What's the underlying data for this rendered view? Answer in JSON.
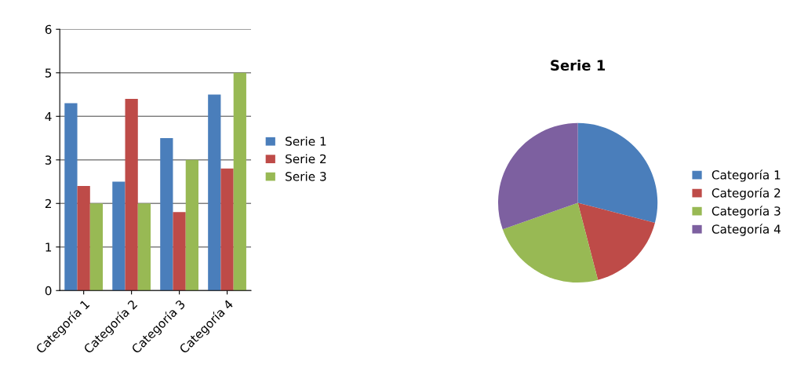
{
  "chart_data": [
    {
      "type": "bar",
      "categories": [
        "Categoría 1",
        "Categoría 2",
        "Categoría 3",
        "Categoría 4"
      ],
      "series": [
        {
          "name": "Serie 1",
          "color": "#4a7ebb",
          "values": [
            4.3,
            2.5,
            3.5,
            4.5
          ]
        },
        {
          "name": "Serie 2",
          "color": "#be4b48",
          "values": [
            2.4,
            4.4,
            1.8,
            2.8
          ]
        },
        {
          "name": "Serie 3",
          "color": "#98b954",
          "values": [
            2,
            2,
            3,
            5
          ]
        }
      ],
      "ylim": [
        0,
        6
      ],
      "yticks": [
        0,
        1,
        2,
        3,
        4,
        5,
        6
      ],
      "grid": "y",
      "legend": "right"
    },
    {
      "type": "pie",
      "title": "Serie 1",
      "categories": [
        "Categoría 1",
        "Categoría 2",
        "Categoría 3",
        "Categoría 4"
      ],
      "values": [
        29.05,
        16.89,
        23.65,
        30.41
      ],
      "colors": [
        "#4a7ebb",
        "#be4b48",
        "#98b954",
        "#7d60a0"
      ],
      "legend": "right"
    }
  ]
}
